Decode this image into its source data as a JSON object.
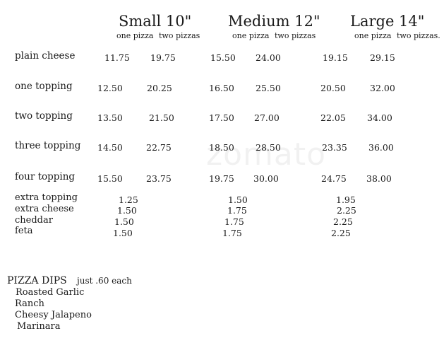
{
  "sizes": [
    {
      "title": "Small 10\"",
      "one_label": "one pizza",
      "two_label": "two pizzas"
    },
    {
      "title": "Medium 12\"",
      "one_label": "one pizza",
      "two_label": "two pizzas"
    },
    {
      "title": "Large 14\"",
      "one_label": "one pizza",
      "two_label": "two pizzas."
    }
  ],
  "rows": [
    {
      "label": "plain cheese",
      "prices": [
        "11.75",
        "19.75",
        "15.50",
        "24.00",
        "19.15",
        "29.15"
      ]
    },
    {
      "label": "one topping",
      "prices": [
        "12.50",
        "20.25",
        "16.50",
        "25.50",
        "20.50",
        "32.00"
      ]
    },
    {
      "label": "two topping",
      "prices": [
        "13.50",
        "21.50",
        "17.50",
        "27.00",
        "22.05",
        "34.00"
      ]
    },
    {
      "label": "three topping",
      "prices": [
        "14.50",
        "22.75",
        "18.50",
        "28.50",
        "23.35",
        "36.00"
      ]
    },
    {
      "label": "four topping",
      "prices": [
        "15.50",
        "23.75",
        "19.75",
        "30.00",
        "24.75",
        "38.00"
      ]
    }
  ],
  "extras": [
    {
      "label": "extra topping",
      "prices": [
        "1.25",
        "1.50",
        "1.95"
      ]
    },
    {
      "label": "extra cheese",
      "prices": [
        "1.50",
        "1.75",
        "2.25"
      ]
    },
    {
      "label": "cheddar",
      "prices": [
        "1.50",
        "1.75",
        "2.25"
      ]
    },
    {
      "label": "feta",
      "prices": [
        "1.50",
        "1.75",
        "2.25"
      ]
    }
  ],
  "dips": {
    "title": "PIZZA DIPS",
    "note": "just .60 each",
    "items": [
      "Roasted Garlic",
      "Ranch",
      "Cheesy Jalapeno",
      "Marinara"
    ]
  },
  "watermark": "zomato"
}
